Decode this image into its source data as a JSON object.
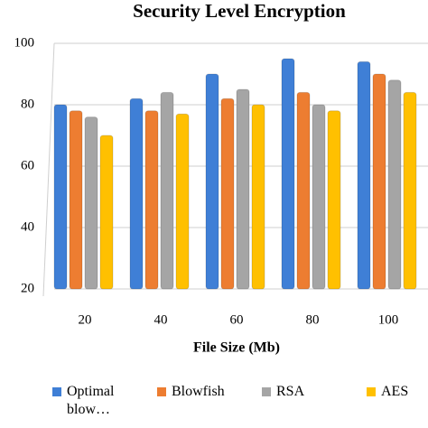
{
  "chart_data": {
    "type": "bar",
    "title": "Security Level Encryption",
    "x_label": "File Size (Mb)",
    "categories": [
      "20",
      "40",
      "60",
      "80",
      "100"
    ],
    "series": [
      {
        "name": "Optimal blow…",
        "color": "#3f7fd6",
        "values": [
          80,
          82,
          90,
          95,
          94
        ]
      },
      {
        "name": "Blowfish",
        "color": "#ed7d31",
        "values": [
          78,
          78,
          82,
          84,
          90
        ]
      },
      {
        "name": "RSA",
        "color": "#a5a5a5",
        "values": [
          76,
          84,
          85,
          80,
          88
        ]
      },
      {
        "name": "AES",
        "color": "#ffc000",
        "values": [
          70,
          77,
          80,
          78,
          84
        ]
      }
    ],
    "ylim": [
      20,
      100
    ],
    "yticks": [
      20,
      40,
      60,
      80,
      100
    ],
    "grid": true
  }
}
